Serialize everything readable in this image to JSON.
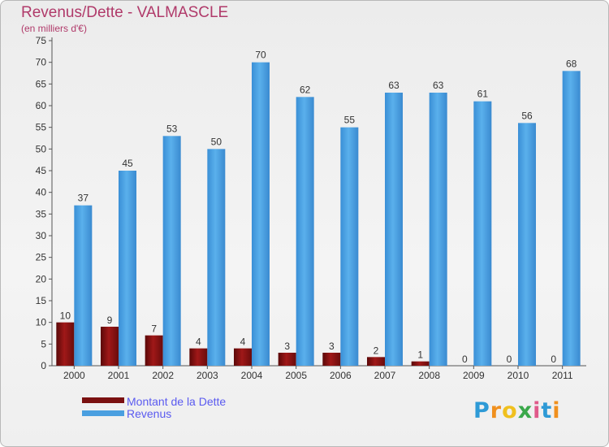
{
  "chart_data": {
    "type": "bar",
    "title": "Revenus/Dette - VALMASCLE",
    "subtitle": "(en milliers d'€)",
    "categories": [
      "2000",
      "2001",
      "2002",
      "2003",
      "2004",
      "2005",
      "2006",
      "2007",
      "2008",
      "2009",
      "2010",
      "2011"
    ],
    "series": [
      {
        "name": "Montant de la Dette",
        "color": "#7a1010",
        "values": [
          10,
          9,
          7,
          4,
          4,
          3,
          3,
          2,
          1,
          0,
          0,
          0
        ]
      },
      {
        "name": "Revenus",
        "color": "#4a9fe0",
        "values": [
          37,
          45,
          53,
          50,
          70,
          62,
          55,
          63,
          63,
          61,
          56,
          68
        ]
      }
    ],
    "ylim": [
      0,
      75
    ],
    "yticks": [
      0,
      5,
      10,
      15,
      20,
      25,
      30,
      35,
      40,
      45,
      50,
      55,
      60,
      65,
      70,
      75
    ],
    "grid": false,
    "legend_position": "bottom-left"
  },
  "logo": {
    "letters": [
      "P",
      "r",
      "o",
      "x",
      "i",
      "t",
      "i"
    ],
    "colors": [
      "#2e9ad6",
      "#f0901e",
      "#f0c01e",
      "#3aa84a",
      "#e05a8a",
      "#2e9ad6",
      "#f0901e"
    ]
  }
}
